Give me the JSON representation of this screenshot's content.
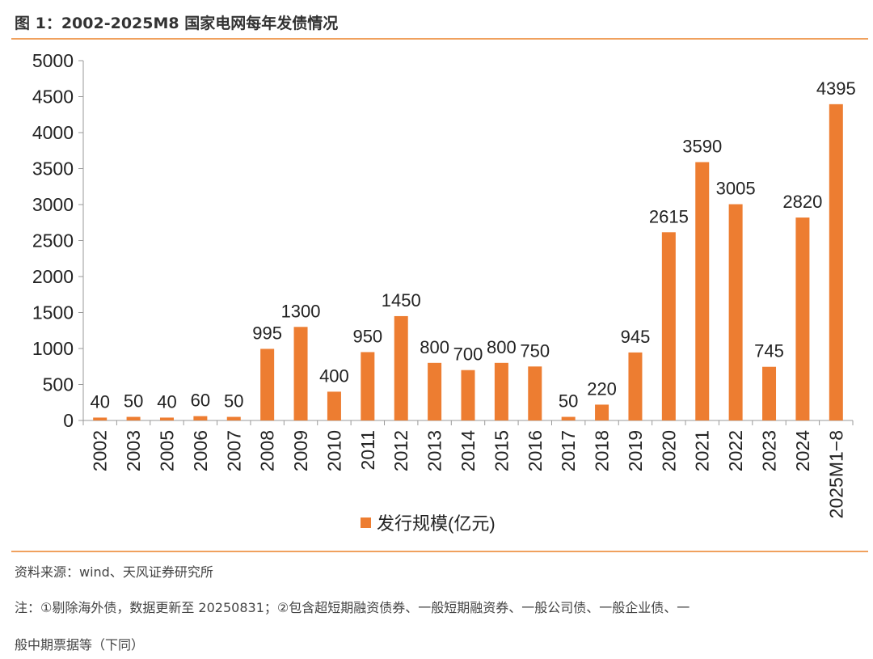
{
  "figure": {
    "title": "图 1：2002-2025M8 国家电网每年发债情况",
    "source": "资料来源：wind、天风证券研究所",
    "note_line1": "注：①剔除海外债，数据更新至 20250831；②包含超短期融资债券、一般短期融资券、一般公司债、一般企业债、一",
    "note_line2": "般中期票据等（下同）",
    "accent_color": "#ED7D31",
    "rule_color": "#F0A15E"
  },
  "chart_data": {
    "type": "bar",
    "title": "2002-2025M8 国家电网每年发债情况",
    "xlabel": "",
    "ylabel": "",
    "ylim": [
      0,
      5000
    ],
    "yticks": [
      0,
      500,
      1000,
      1500,
      2000,
      2500,
      3000,
      3500,
      4000,
      4500,
      5000
    ],
    "grid": false,
    "legend_position": "bottom-center",
    "categories": [
      "2002",
      "2003",
      "2005",
      "2006",
      "2007",
      "2008",
      "2009",
      "2010",
      "2011",
      "2012",
      "2013",
      "2014",
      "2015",
      "2016",
      "2017",
      "2018",
      "2019",
      "2020",
      "2021",
      "2022",
      "2023",
      "2024",
      "2025M1-8"
    ],
    "series": [
      {
        "name": "发行规模(亿元)",
        "color": "#ED7D31",
        "values": [
          40,
          50,
          40,
          60,
          50,
          995,
          1300,
          400,
          950,
          1450,
          800,
          700,
          800,
          750,
          50,
          220,
          945,
          2615,
          3590,
          3005,
          745,
          2820,
          4395
        ]
      }
    ]
  }
}
